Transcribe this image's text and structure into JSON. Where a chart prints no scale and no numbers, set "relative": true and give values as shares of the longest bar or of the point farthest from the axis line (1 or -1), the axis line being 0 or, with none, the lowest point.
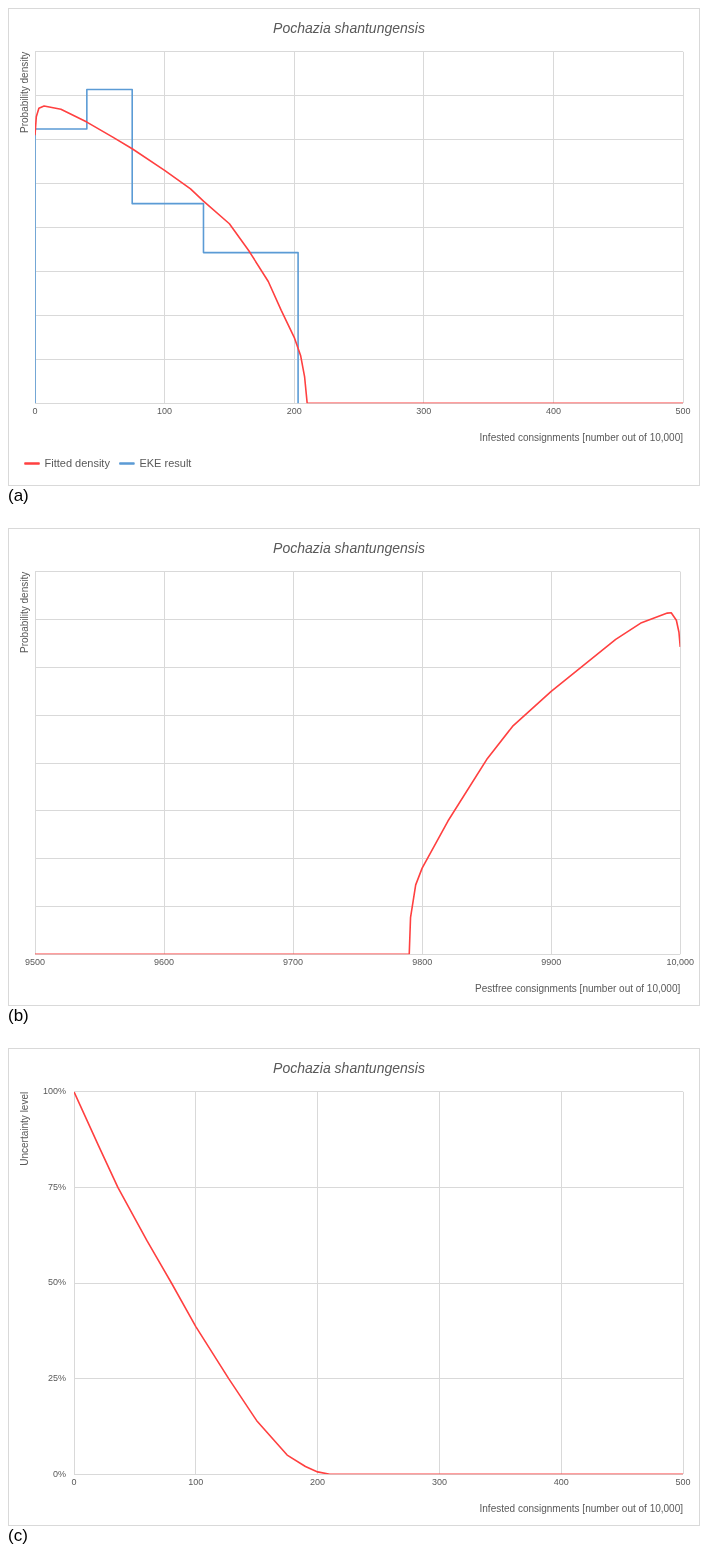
{
  "chart_data": [
    {
      "type": "line",
      "title": "Pochazia shantungensis",
      "ylabel": "Probability density",
      "xlabel": "Infested consignments [number out of 10,000]",
      "relative": true,
      "xlim": [
        0,
        500
      ],
      "xticks": [
        0,
        100,
        200,
        300,
        400,
        500
      ],
      "grid": true,
      "legend": "bottom left",
      "tick_labels": "x",
      "annotations": [
        "(a)"
      ],
      "series": [
        {
          "name": "EKE result",
          "color": "#5b9bd5",
          "x": [
            0,
            0,
            40,
            40,
            75,
            75,
            130,
            130,
            203,
            203
          ],
          "values": [
            0,
            0.874,
            0.874,
            1,
            1,
            0.636,
            0.636,
            0.48,
            0.48,
            0
          ]
        },
        {
          "name": "Fitted density",
          "color": "#ff4040",
          "x": [
            0,
            1,
            3,
            7,
            20,
            40,
            60,
            75,
            100,
            120,
            130,
            150,
            165,
            180,
            190,
            200,
            205,
            208,
            210,
            500
          ],
          "values": [
            0.854,
            0.913,
            0.94,
            0.947,
            0.937,
            0.896,
            0.848,
            0.811,
            0.742,
            0.683,
            0.644,
            0.572,
            0.486,
            0.388,
            0.296,
            0.21,
            0.151,
            0.085,
            0,
            0
          ]
        }
      ]
    },
    {
      "type": "line",
      "title": "Pochazia shantungensis",
      "ylabel": "Probability density",
      "xlabel": "Pestfree consignments [number out of 10,000]",
      "relative": true,
      "xlim": [
        9500,
        10000
      ],
      "xticks": [
        9500,
        9600,
        9700,
        9800,
        9900,
        {
          "value": 10000,
          "label": "10,000"
        }
      ],
      "grid": true,
      "tick_labels": "x",
      "annotations": [
        "(b)"
      ],
      "series": [
        {
          "color": "#ff4040",
          "x": [
            9500,
            9790,
            9791,
            9795,
            9800,
            9820,
            9850,
            9870,
            9900,
            9925,
            9950,
            9970,
            9990,
            9993,
            9997,
            9999,
            10000
          ],
          "values": [
            0,
            0,
            0.107,
            0.203,
            0.252,
            0.39,
            0.57,
            0.667,
            0.77,
            0.846,
            0.922,
            0.971,
            0.999,
            1,
            0.978,
            0.943,
            0.9
          ]
        }
      ]
    },
    {
      "type": "line",
      "title": "Pochazia shantungensis",
      "ylabel": "Uncertainty level",
      "xlabel": "Infested consignments [number out of 10,000]",
      "xlim": [
        0,
        500
      ],
      "xticks": [
        0,
        100,
        200,
        300,
        400,
        500
      ],
      "ylim": [
        0,
        100
      ],
      "yticks": [
        {
          "value": 0,
          "label": "0%"
        },
        {
          "value": 25,
          "label": "25%"
        },
        {
          "value": 50,
          "label": "50%"
        },
        {
          "value": 75,
          "label": "75%"
        },
        {
          "value": 100,
          "label": "100%"
        }
      ],
      "grid": true,
      "annotations": [
        "(c)"
      ],
      "series": [
        {
          "color": "#ff4040",
          "x": [
            0,
            20,
            36,
            60,
            80,
            100,
            127,
            150,
            175,
            190,
            200,
            210,
            500
          ],
          "values": [
            100,
            86,
            75,
            61,
            50,
            38.6,
            25,
            14,
            5,
            2,
            0.6,
            0,
            0
          ]
        }
      ]
    }
  ]
}
